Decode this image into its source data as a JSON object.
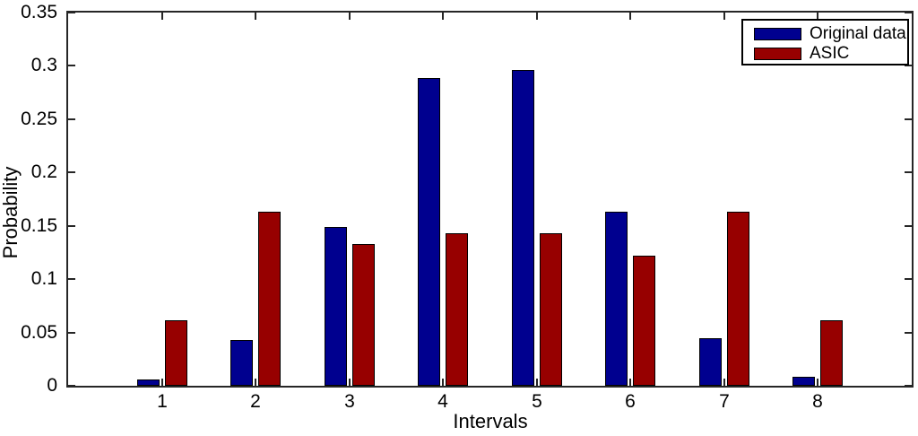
{
  "figure": {
    "background": "#ffffff",
    "frame_color": "#262626"
  },
  "chart_data": {
    "type": "bar",
    "title": "",
    "xlabel": "Intervals",
    "ylabel": "Probability",
    "categories": [
      "1",
      "2",
      "3",
      "4",
      "5",
      "6",
      "7",
      "8"
    ],
    "series": [
      {
        "name": "Original data",
        "color": "#00008f",
        "values": [
          0.006,
          0.043,
          0.149,
          0.289,
          0.296,
          0.163,
          0.045,
          0.008
        ]
      },
      {
        "name": "ASIC",
        "color": "#970000",
        "values": [
          0.061,
          0.163,
          0.133,
          0.143,
          0.143,
          0.122,
          0.163,
          0.061
        ]
      }
    ],
    "ylim": [
      0,
      0.35
    ],
    "xlim": [
      0,
      9
    ],
    "yticks": [
      "0",
      "0.05",
      "0.1",
      "0.15",
      "0.2",
      "0.25",
      "0.3",
      "0.35"
    ],
    "grid": false,
    "legend_position": "top-right",
    "bar_edge_color": "#000000"
  }
}
